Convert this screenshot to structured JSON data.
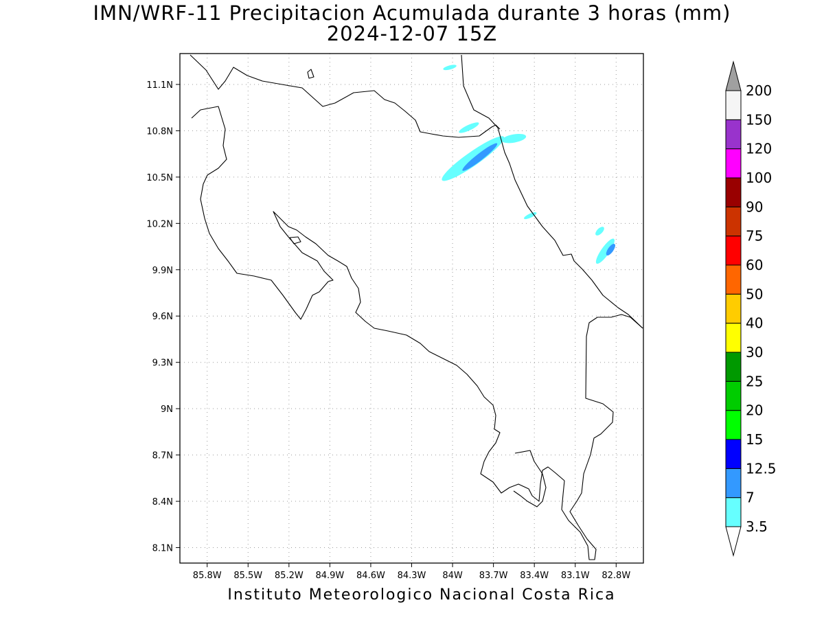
{
  "title": {
    "line1": "IMN/WRF-11 Precipitacion Acumulada durante 3 horas (mm)",
    "line2": "2024-12-07 15Z"
  },
  "footer": "Instituto Meteorologico Nacional Costa Rica",
  "map": {
    "lon_range": [
      -86.0,
      -82.6
    ],
    "lat_range": [
      8.0,
      11.3
    ],
    "lon_ticks": [
      {
        "value": -85.8,
        "label": "85.8W"
      },
      {
        "value": -85.5,
        "label": "85.5W"
      },
      {
        "value": -85.2,
        "label": "85.2W"
      },
      {
        "value": -84.9,
        "label": "84.9W"
      },
      {
        "value": -84.6,
        "label": "84.6W"
      },
      {
        "value": -84.3,
        "label": "84.3W"
      },
      {
        "value": -84.0,
        "label": "84W"
      },
      {
        "value": -83.7,
        "label": "83.7W"
      },
      {
        "value": -83.4,
        "label": "83.4W"
      },
      {
        "value": -83.1,
        "label": "83.1W"
      },
      {
        "value": -82.8,
        "label": "82.8W"
      }
    ],
    "lat_ticks": [
      {
        "value": 11.1,
        "label": "11.1N"
      },
      {
        "value": 10.8,
        "label": "10.8N"
      },
      {
        "value": 10.5,
        "label": "10.5N"
      },
      {
        "value": 10.2,
        "label": "10.2N"
      },
      {
        "value": 9.9,
        "label": "9.9N"
      },
      {
        "value": 9.6,
        "label": "9.6N"
      },
      {
        "value": 9.3,
        "label": "9.3N"
      },
      {
        "value": 9.0,
        "label": "9N"
      },
      {
        "value": 8.7,
        "label": "8.7N"
      },
      {
        "value": 8.4,
        "label": "8.4N"
      },
      {
        "value": 8.1,
        "label": "8.1N"
      }
    ],
    "grid": true,
    "precip_areas": [
      {
        "lon": -83.85,
        "lat": 10.62,
        "level": "3.5"
      },
      {
        "lon": -83.8,
        "lat": 10.63,
        "level": "7"
      },
      {
        "lon": -83.55,
        "lat": 10.75,
        "level": "3.5"
      },
      {
        "lon": -83.88,
        "lat": 10.82,
        "level": "3.5"
      },
      {
        "lon": -84.02,
        "lat": 11.21,
        "level": "3.5"
      },
      {
        "lon": -82.88,
        "lat": 10.02,
        "level": "3.5"
      },
      {
        "lon": -82.84,
        "lat": 10.03,
        "level": "7"
      },
      {
        "lon": -82.92,
        "lat": 10.15,
        "level": "3.5"
      },
      {
        "lon": -83.43,
        "lat": 10.25,
        "level": "3.5"
      }
    ]
  },
  "colorbar": {
    "labels": [
      "3.5",
      "7",
      "12.5",
      "15",
      "20",
      "25",
      "30",
      "40",
      "50",
      "60",
      "75",
      "90",
      "100",
      "120",
      "150",
      "200"
    ],
    "colors": [
      "#66ffff",
      "#3399ff",
      "#0000ff",
      "#00ff00",
      "#00cc00",
      "#009900",
      "#ffff00",
      "#ffcc00",
      "#ff6600",
      "#ff0000",
      "#cc3300",
      "#990000",
      "#ff00ff",
      "#9933cc",
      "#f5f5f5"
    ],
    "lower_arrow_color": "#ffffff",
    "upper_arrow_color": "#a0a0a0"
  }
}
